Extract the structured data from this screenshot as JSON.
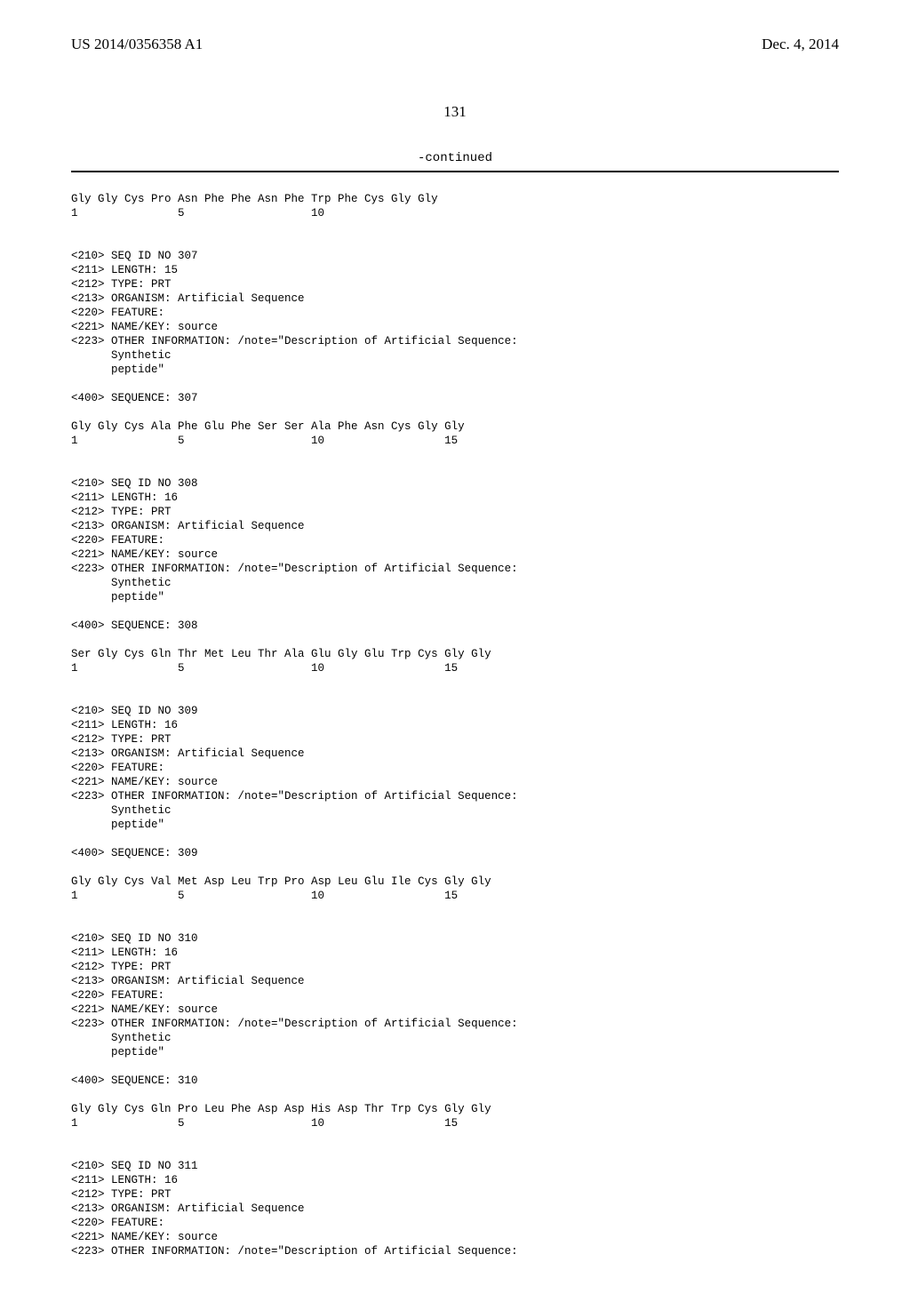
{
  "header": {
    "pub_number": "US 2014/0356358 A1",
    "pub_date": "Dec. 4, 2014"
  },
  "page_number": "131",
  "continued_label": "-continued",
  "sequences": [
    "\nGly Gly Cys Pro Asn Phe Phe Asn Phe Trp Phe Cys Gly Gly\n1               5                   10\n\n\n<210> SEQ ID NO 307\n<211> LENGTH: 15\n<212> TYPE: PRT\n<213> ORGANISM: Artificial Sequence\n<220> FEATURE:\n<221> NAME/KEY: source\n<223> OTHER INFORMATION: /note=\"Description of Artificial Sequence:\n      Synthetic\n      peptide\"\n\n<400> SEQUENCE: 307\n\nGly Gly Cys Ala Phe Glu Phe Ser Ser Ala Phe Asn Cys Gly Gly\n1               5                   10                  15\n\n\n<210> SEQ ID NO 308\n<211> LENGTH: 16\n<212> TYPE: PRT\n<213> ORGANISM: Artificial Sequence\n<220> FEATURE:\n<221> NAME/KEY: source\n<223> OTHER INFORMATION: /note=\"Description of Artificial Sequence:\n      Synthetic\n      peptide\"\n\n<400> SEQUENCE: 308\n\nSer Gly Cys Gln Thr Met Leu Thr Ala Glu Gly Glu Trp Cys Gly Gly\n1               5                   10                  15\n\n\n<210> SEQ ID NO 309\n<211> LENGTH: 16\n<212> TYPE: PRT\n<213> ORGANISM: Artificial Sequence\n<220> FEATURE:\n<221> NAME/KEY: source\n<223> OTHER INFORMATION: /note=\"Description of Artificial Sequence:\n      Synthetic\n      peptide\"\n\n<400> SEQUENCE: 309\n\nGly Gly Cys Val Met Asp Leu Trp Pro Asp Leu Glu Ile Cys Gly Gly\n1               5                   10                  15\n\n\n<210> SEQ ID NO 310\n<211> LENGTH: 16\n<212> TYPE: PRT\n<213> ORGANISM: Artificial Sequence\n<220> FEATURE:\n<221> NAME/KEY: source\n<223> OTHER INFORMATION: /note=\"Description of Artificial Sequence:\n      Synthetic\n      peptide\"\n\n<400> SEQUENCE: 310\n\nGly Gly Cys Gln Pro Leu Phe Asp Asp His Asp Thr Trp Cys Gly Gly\n1               5                   10                  15\n\n\n<210> SEQ ID NO 311\n<211> LENGTH: 16\n<212> TYPE: PRT\n<213> ORGANISM: Artificial Sequence\n<220> FEATURE:\n<221> NAME/KEY: source\n<223> OTHER INFORMATION: /note=\"Description of Artificial Sequence:"
  ]
}
